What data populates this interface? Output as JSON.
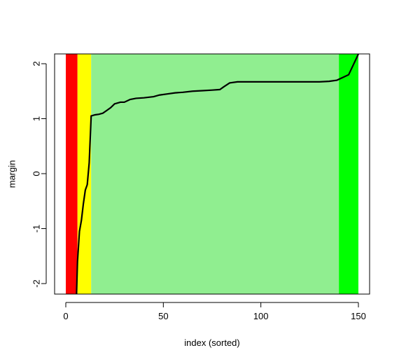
{
  "chart_data": {
    "type": "line",
    "title": "",
    "xlabel": "index (sorted)",
    "ylabel": "margin",
    "xlim": [
      -3,
      155
    ],
    "ylim": [
      -2.2,
      2.2
    ],
    "x_ticks": [
      0,
      50,
      100,
      150
    ],
    "y_ticks": [
      -2,
      -1,
      0,
      1,
      2
    ],
    "x_tick_labels": [
      "0",
      "50",
      "100",
      "150"
    ],
    "y_tick_labels": [
      "-2",
      "-1",
      "0",
      "1",
      "2"
    ],
    "grid": false,
    "legend": "none",
    "bands": [
      {
        "from": 0,
        "to": 6,
        "color": "#ff0000"
      },
      {
        "from": 6,
        "to": 13,
        "color": "#ffff00"
      },
      {
        "from": 13,
        "to": 140,
        "color": "#90ee90"
      },
      {
        "from": 140,
        "to": 150,
        "color": "#00ff00"
      }
    ],
    "series": [
      {
        "color": "#000000",
        "points": [
          [
            5.5,
            -2.2
          ],
          [
            6,
            -1.6
          ],
          [
            7,
            -1.05
          ],
          [
            8,
            -0.85
          ],
          [
            9,
            -0.55
          ],
          [
            10,
            -0.3
          ],
          [
            11,
            -0.2
          ],
          [
            12,
            0.2
          ],
          [
            13,
            1.05
          ],
          [
            15,
            1.07
          ],
          [
            17,
            1.08
          ],
          [
            19,
            1.1
          ],
          [
            21,
            1.15
          ],
          [
            23,
            1.2
          ],
          [
            25,
            1.27
          ],
          [
            28,
            1.3
          ],
          [
            30,
            1.3
          ],
          [
            33,
            1.35
          ],
          [
            36,
            1.37
          ],
          [
            40,
            1.38
          ],
          [
            45,
            1.4
          ],
          [
            48,
            1.43
          ],
          [
            52,
            1.45
          ],
          [
            56,
            1.47
          ],
          [
            60,
            1.48
          ],
          [
            65,
            1.5
          ],
          [
            70,
            1.51
          ],
          [
            75,
            1.52
          ],
          [
            79,
            1.53
          ],
          [
            81,
            1.58
          ],
          [
            84,
            1.65
          ],
          [
            88,
            1.67
          ],
          [
            100,
            1.67
          ],
          [
            110,
            1.67
          ],
          [
            120,
            1.67
          ],
          [
            130,
            1.67
          ],
          [
            135,
            1.68
          ],
          [
            139,
            1.7
          ],
          [
            142,
            1.75
          ],
          [
            145,
            1.8
          ],
          [
            147,
            1.95
          ],
          [
            149,
            2.1
          ],
          [
            150,
            2.2
          ]
        ]
      }
    ]
  }
}
